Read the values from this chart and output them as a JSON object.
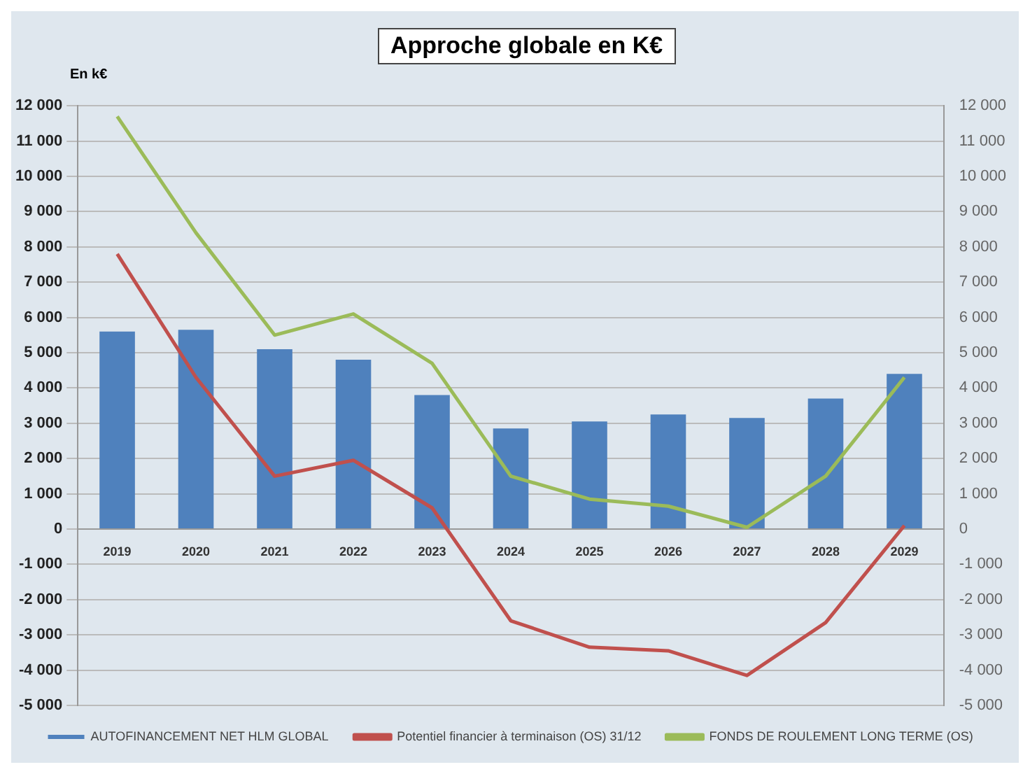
{
  "chart_data": {
    "type": "bar",
    "title": "Approche globale en K€",
    "ylabel": "En k€",
    "categories": [
      "2019",
      "2020",
      "2021",
      "2022",
      "2023",
      "2024",
      "2025",
      "2026",
      "2027",
      "2028",
      "2029"
    ],
    "series": [
      {
        "name": "AUTOFINANCEMENT NET HLM GLOBAL",
        "color": "#4f81bd",
        "values": [
          5600,
          5650,
          5100,
          4800,
          3800,
          2850,
          3050,
          3250,
          3150,
          3700,
          4400
        ]
      },
      {
        "name": "Potentiel financier à terminaison (OS) 31/12",
        "type": "line",
        "color": "#c0504d",
        "values": [
          7800,
          4300,
          1500,
          1950,
          600,
          -2600,
          -3350,
          -3450,
          -4150,
          -2650,
          100
        ]
      },
      {
        "name": "FONDS DE ROULEMENT LONG TERME (OS)",
        "type": "line",
        "color": "#9bbb59",
        "values": [
          11700,
          8400,
          5500,
          6100,
          4700,
          1500,
          850,
          650,
          50,
          1500,
          4300
        ]
      }
    ],
    "ylim": [
      -5000,
      12000
    ],
    "yticks": [
      {
        "value": -5000,
        "label": "-5 000"
      },
      {
        "value": -4000,
        "label": "-4 000"
      },
      {
        "value": -3000,
        "label": "-3 000"
      },
      {
        "value": -2000,
        "label": "-2 000"
      },
      {
        "value": -1000,
        "label": "-1 000"
      },
      0,
      {
        "value": 1000,
        "label": "1 000"
      },
      {
        "value": 2000,
        "label": "2 000"
      },
      {
        "value": 3000,
        "label": "3 000"
      },
      {
        "value": 4000,
        "label": "4 000"
      },
      {
        "value": 5000,
        "label": "5 000"
      },
      {
        "value": 6000,
        "label": "6 000"
      },
      {
        "value": 7000,
        "label": "7 000"
      },
      {
        "value": 8000,
        "label": "8 000"
      },
      {
        "value": 9000,
        "label": "9 000"
      },
      {
        "value": 10000,
        "label": "10 000"
      },
      {
        "value": 11000,
        "label": "11 000"
      },
      {
        "value": 12000,
        "label": "12 000"
      }
    ],
    "y2lim": [
      -5000,
      12000
    ],
    "y2ticks": [
      {
        "value": -5000,
        "label": "-5 000"
      },
      {
        "value": -4000,
        "label": "-4 000"
      },
      {
        "value": -3000,
        "label": "-3 000"
      },
      {
        "value": -2000,
        "label": "-2 000"
      },
      {
        "value": -1000,
        "label": "-1 000"
      },
      0,
      {
        "value": 1000,
        "label": "1 000"
      },
      {
        "value": 2000,
        "label": "2 000"
      },
      {
        "value": 3000,
        "label": "3 000"
      },
      {
        "value": 4000,
        "label": "4 000"
      },
      {
        "value": 5000,
        "label": "5 000"
      },
      {
        "value": 6000,
        "label": "6 000"
      },
      {
        "value": 7000,
        "label": "7 000"
      },
      {
        "value": 8000,
        "label": "8 000"
      },
      {
        "value": 9000,
        "label": "9 000"
      },
      {
        "value": 10000,
        "label": "10 000"
      },
      {
        "value": 11000,
        "label": "11 000"
      },
      {
        "value": 12000,
        "label": "12 000"
      }
    ],
    "grid": "y",
    "legend": "bottom",
    "marker": "none",
    "line_style": "solid"
  }
}
